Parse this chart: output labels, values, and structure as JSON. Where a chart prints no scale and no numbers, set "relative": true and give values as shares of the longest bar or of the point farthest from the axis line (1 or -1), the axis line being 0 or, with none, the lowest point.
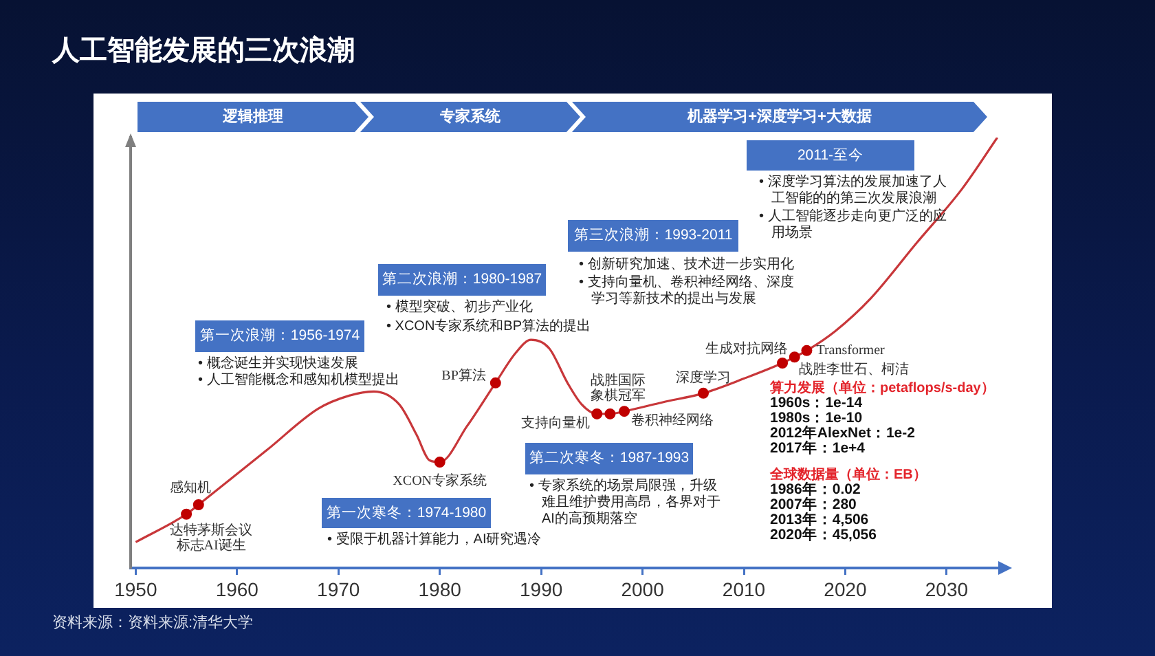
{
  "chart_data": {
    "type": "line",
    "title": "人工智能发展的三次浪潮",
    "relative": true,
    "xlim": [
      1949.5,
      2035.5
    ],
    "xticks": [
      1950,
      1960,
      1970,
      1980,
      1990,
      2000,
      2010,
      2020,
      2030
    ],
    "series": [
      {
        "color": "#c8373a",
        "marker": "none",
        "x": [
          1950,
          1955,
          1956.2,
          1963,
          1968,
          1971,
          1973.5,
          1976,
          1977.7,
          1979,
          1980,
          1982.7,
          1985.5,
          1987.5,
          1989,
          1990.8,
          1992.6,
          1994,
          1995.5,
          1996.8,
          1998.2,
          2002,
          2006,
          2010,
          2013.8,
          2015,
          2016.2,
          2019,
          2022.5,
          2027,
          2031.5,
          2035
        ],
        "values": [
          0.06,
          0.125,
          0.147,
          0.275,
          0.37,
          0.4,
          0.41,
          0.38,
          0.31,
          0.25,
          0.246,
          0.33,
          0.43,
          0.5,
          0.53,
          0.51,
          0.43,
          0.38,
          0.358,
          0.358,
          0.364,
          0.385,
          0.406,
          0.44,
          0.476,
          0.49,
          0.505,
          0.55,
          0.626,
          0.754,
          0.88,
          1
        ]
      },
      {
        "type": "scatter",
        "color": "#c00000",
        "marker": "circle",
        "x": [
          1955,
          1956.2,
          1980,
          1985.5,
          1995.5,
          1996.8,
          1998.2,
          2006,
          2013.8,
          2015,
          2016.2
        ],
        "values": [
          0.125,
          0.147,
          0.246,
          0.43,
          0.358,
          0.358,
          0.364,
          0.406,
          0.476,
          0.49,
          0.505
        ]
      }
    ],
    "annotations": [
      "逻辑推理",
      "专家系统",
      "机器学习+深度学习+大数据",
      "第一次浪潮：1956-1974",
      "• 概念诞生并实现快速发展",
      "• 人工智能概念和感知机模型提出",
      "第二次浪潮：1980-1987",
      "• 模型突破、初步产业化",
      "• XCON专家系统和BP算法的提出",
      "第三次浪潮：1993-2011",
      "• 创新研究加速、技术进一步实用化",
      "• 支持向量机、卷积神经网络、深度学习等新技术的提出与发展",
      "2011-至今",
      "• 深度学习算法的发展加速了人工智能的的第三次发展浪潮",
      "• 人工智能逐步走向更广泛的应用场景",
      "第一次寒冬：1974-1980",
      "• 受限于机器计算能力，AI研究遇冷",
      "第二次寒冬：1987-1993",
      "• 专家系统的场景局限强，升级难且维护费用高昂，各界对于AI的高预期落空",
      "算力发展（单位：petaflops/s-day）",
      "1960s：1e-14",
      "1980s：1e-10",
      "2012年AlexNet：1e-2",
      "2017年：1e+4",
      "全球数据量（单位：EB）",
      "1986年：0.02",
      "2007年：280",
      "2013年：4,506",
      "2020年：45,056",
      "资料来源：资料来源:清华大学",
      {
        "text": "感知机",
        "x": 1956.2,
        "y": 0.147
      },
      {
        "text": "达特茅斯会议标志AI诞生",
        "x": 1955,
        "y": 0.125
      },
      {
        "text": "XCON专家系统",
        "x": 1980,
        "y": 0.246
      },
      {
        "text": "BP算法",
        "x": 1985.5,
        "y": 0.43
      },
      {
        "text": "支持向量机",
        "x": 1995.5,
        "y": 0.358
      },
      {
        "text": "战胜国际象棋冠军",
        "x": 1996.8,
        "y": 0.358
      },
      {
        "text": "卷积神经网络",
        "x": 1998.2,
        "y": 0.364
      },
      {
        "text": "深度学习",
        "x": 2006,
        "y": 0.406
      },
      {
        "text": "生成对抗网络",
        "x": 2013.8,
        "y": 0.476
      },
      {
        "text": "战胜李世石、柯洁",
        "x": 2015,
        "y": 0.49
      },
      {
        "text": "Transformer",
        "x": 2016.2,
        "y": 0.505
      }
    ]
  }
}
